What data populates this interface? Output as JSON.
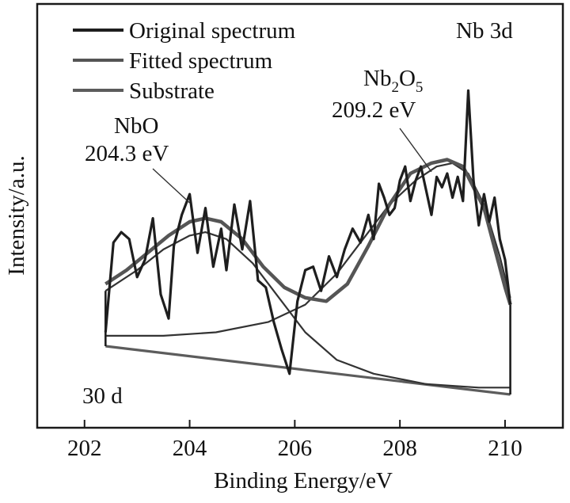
{
  "chart_data": {
    "type": "line",
    "xlabel": "Binding Energy/eV",
    "ylabel": "Intensity/a.u.",
    "xlim": [
      201.1,
      211.1
    ],
    "ylim": [
      0,
      1
    ],
    "x_ticks": [
      202,
      204,
      206,
      208,
      210
    ],
    "y_ticks_visible": false,
    "grid": false,
    "legend": {
      "position": "top-left",
      "entries": [
        "Original spectrum",
        "Fitted spectrum",
        "Substrate"
      ]
    },
    "sample_label": "30 d",
    "colors": {
      "original": "#1e1e1e",
      "fitted": "#555555",
      "substrate": "#5c5c5c",
      "components": "#333333"
    },
    "annotations": [
      {
        "label": "Nb 3d",
        "text": [
          "Nb 3d"
        ],
        "x": 209.3,
        "y": 0.88
      },
      {
        "label": "Nb2O5",
        "text": [
          "Nb",
          "2",
          "O",
          "5",
          "209.2 eV"
        ],
        "x": 208.6,
        "y": 0.645
      },
      {
        "label": "NbO",
        "text": [
          "NbO",
          "204.3 eV"
        ],
        "x": 204.0,
        "y": 0.555
      }
    ],
    "series": [
      {
        "name": "Original spectrum",
        "x": [
          202.4,
          202.55,
          202.7,
          202.85,
          203.0,
          203.15,
          203.3,
          203.45,
          203.6,
          203.7,
          203.85,
          204.0,
          204.15,
          204.3,
          204.45,
          204.6,
          204.7,
          204.85,
          205.0,
          205.15,
          205.3,
          205.45,
          205.6,
          205.75,
          205.9,
          206.05,
          206.2,
          206.35,
          206.5,
          206.65,
          206.8,
          206.95,
          207.1,
          207.25,
          207.4,
          207.5,
          207.6,
          207.7,
          207.8,
          207.9,
          208.0,
          208.1,
          208.2,
          208.3,
          208.4,
          208.5,
          208.6,
          208.7,
          208.8,
          208.9,
          209.0,
          209.1,
          209.2,
          209.3,
          209.4,
          209.5,
          209.6,
          209.7,
          209.8,
          209.9,
          210.0,
          210.1
        ],
        "y": [
          0.18,
          0.44,
          0.47,
          0.45,
          0.34,
          0.39,
          0.51,
          0.29,
          0.22,
          0.43,
          0.52,
          0.58,
          0.41,
          0.54,
          0.37,
          0.48,
          0.36,
          0.55,
          0.42,
          0.56,
          0.33,
          0.31,
          0.21,
          0.13,
          0.06,
          0.27,
          0.36,
          0.37,
          0.3,
          0.4,
          0.34,
          0.42,
          0.48,
          0.44,
          0.52,
          0.45,
          0.61,
          0.57,
          0.52,
          0.54,
          0.62,
          0.66,
          0.56,
          0.62,
          0.66,
          0.59,
          0.52,
          0.63,
          0.6,
          0.64,
          0.57,
          0.63,
          0.56,
          0.88,
          0.62,
          0.49,
          0.58,
          0.5,
          0.57,
          0.45,
          0.39,
          0.26
        ]
      },
      {
        "name": "Fitted spectrum",
        "x": [
          202.4,
          202.8,
          203.2,
          203.6,
          204.0,
          204.3,
          204.6,
          205.0,
          205.4,
          205.8,
          206.2,
          206.6,
          207.0,
          207.4,
          207.8,
          208.2,
          208.6,
          208.9,
          209.2,
          209.6,
          210.0,
          210.1
        ],
        "y": [
          0.32,
          0.36,
          0.41,
          0.46,
          0.5,
          0.51,
          0.5,
          0.45,
          0.37,
          0.31,
          0.28,
          0.27,
          0.32,
          0.43,
          0.55,
          0.64,
          0.67,
          0.68,
          0.66,
          0.54,
          0.31,
          0.26
        ]
      },
      {
        "name": "Substrate",
        "x": [
          202.4,
          210.1
        ],
        "y": [
          0.14,
          0.0
        ]
      },
      {
        "name": "",
        "x": [
          202.4,
          203.0,
          203.5,
          204.0,
          204.3,
          204.7,
          205.2,
          205.7,
          206.2,
          206.8,
          207.5,
          208.5,
          209.5,
          210.1
        ],
        "y": [
          0.3,
          0.36,
          0.42,
          0.46,
          0.47,
          0.45,
          0.38,
          0.28,
          0.18,
          0.1,
          0.06,
          0.03,
          0.02,
          0.02
        ]
      },
      {
        "name": "",
        "x": [
          202.4,
          203.5,
          204.5,
          205.5,
          206.2,
          206.8,
          207.3,
          207.8,
          208.3,
          208.7,
          209.0,
          209.3,
          209.6,
          209.9,
          210.1
        ],
        "y": [
          0.17,
          0.17,
          0.18,
          0.21,
          0.26,
          0.35,
          0.45,
          0.55,
          0.62,
          0.66,
          0.67,
          0.64,
          0.55,
          0.4,
          0.28
        ]
      }
    ]
  }
}
